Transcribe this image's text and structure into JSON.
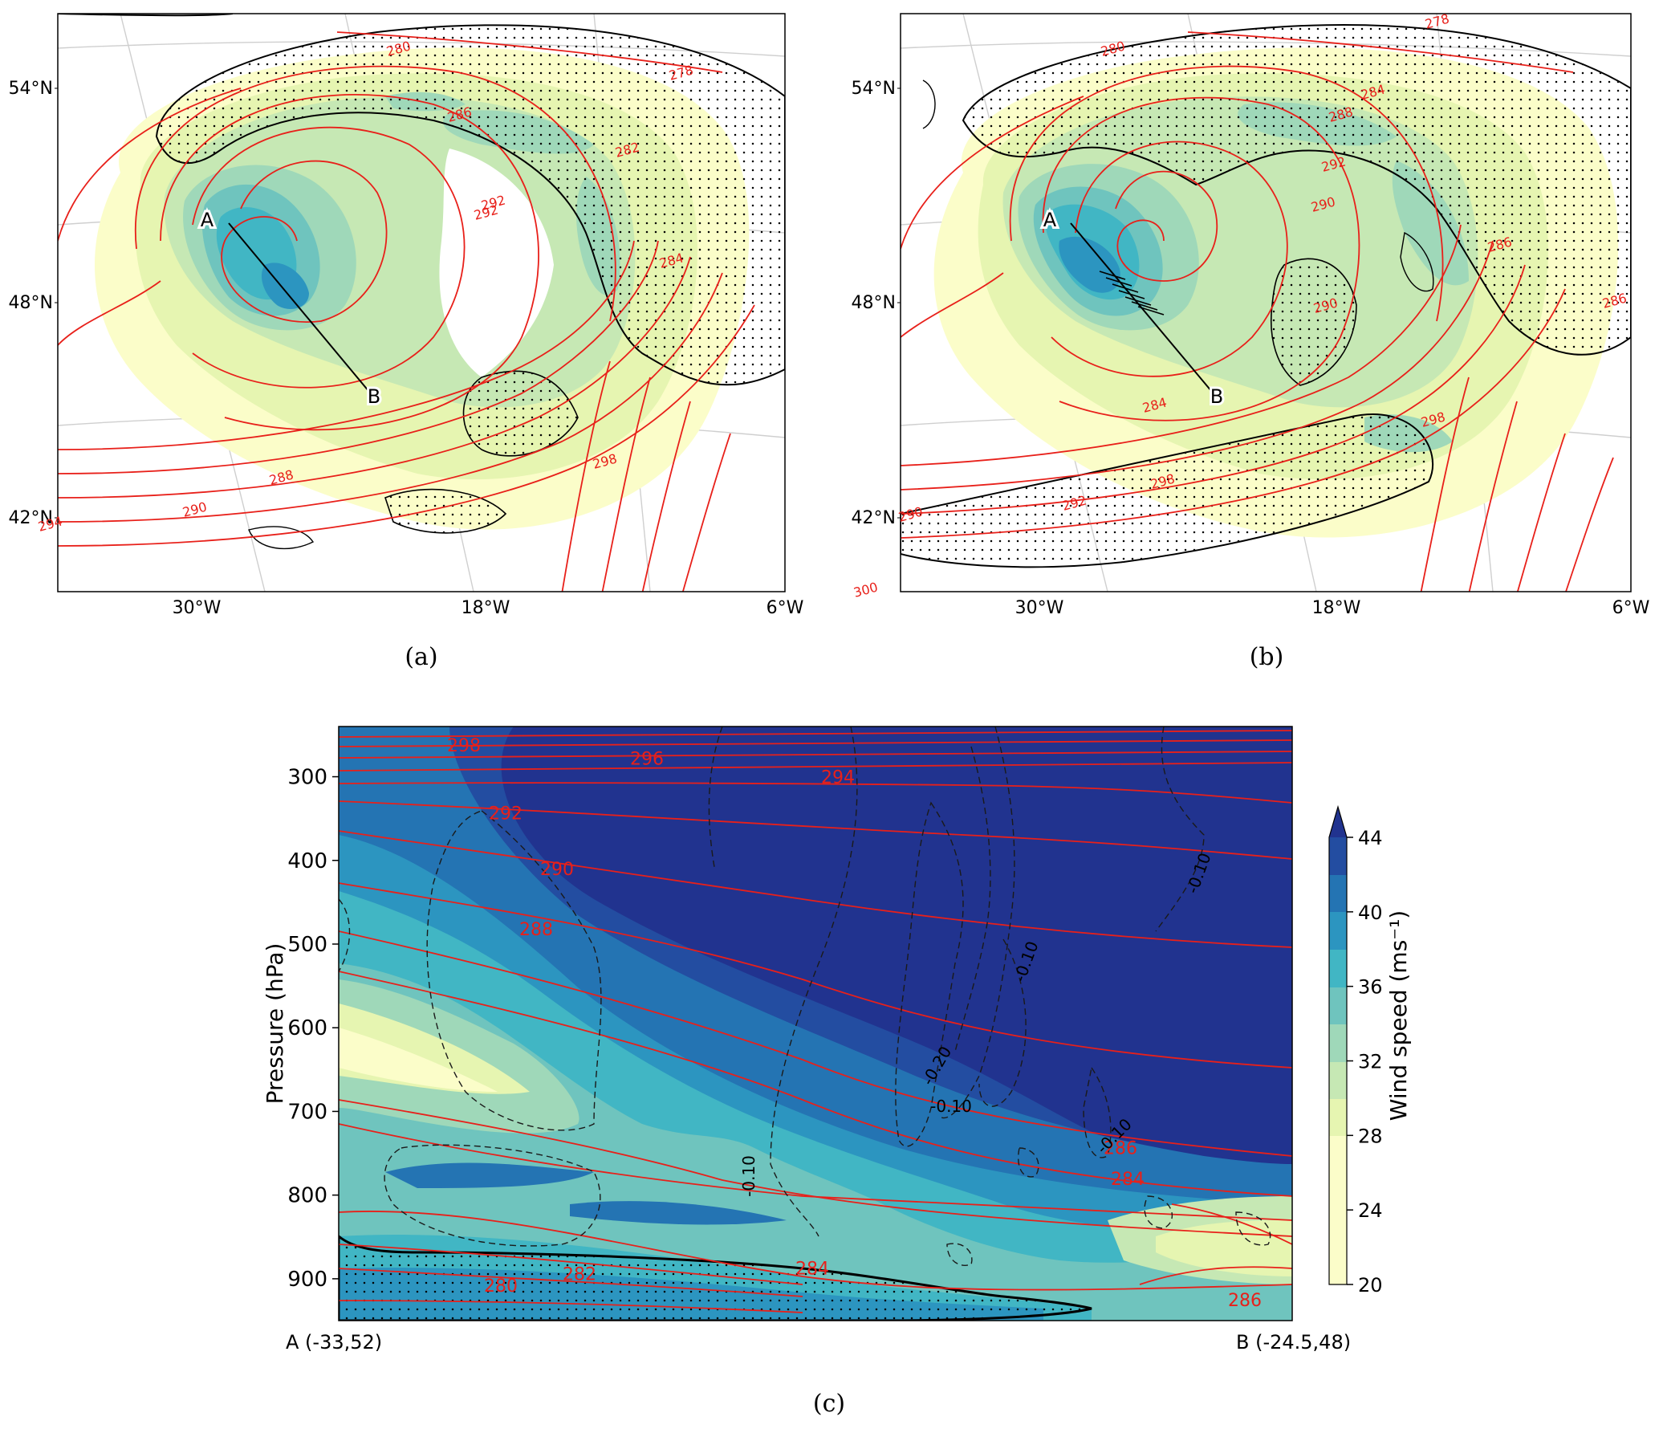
{
  "figure": {
    "panel_a_caption": "(a)",
    "panel_b_caption": "(b)",
    "panel_c_caption": "(c)"
  },
  "chart_data": [
    {
      "panel": "a",
      "type": "contour",
      "map_lat_ticks": [
        "54°N",
        "48°N",
        "42°N"
      ],
      "map_lon_ticks": [
        "30°W",
        "18°W",
        "6°W"
      ],
      "section_points": [
        "A",
        "B"
      ],
      "isentrope_labels": [
        "280",
        "278",
        "286",
        "282",
        "292",
        "284",
        "292",
        "288",
        "290",
        "294",
        "298"
      ]
    },
    {
      "panel": "b",
      "type": "contour",
      "map_lat_ticks": [
        "54°N",
        "48°N",
        "42°N"
      ],
      "map_lon_ticks": [
        "30°W",
        "18°W",
        "6°W"
      ],
      "section_points": [
        "A",
        "B"
      ],
      "isentrope_labels": [
        "280",
        "278",
        "284",
        "288",
        "292",
        "290",
        "290",
        "286",
        "286",
        "284",
        "298",
        "298",
        "292",
        "290",
        "300"
      ]
    },
    {
      "panel": "c",
      "type": "contour",
      "ylabel": "Pressure (hPa)",
      "ylim": [
        950,
        240
      ],
      "y_ticks": [
        300,
        400,
        500,
        600,
        700,
        800,
        900
      ],
      "x_ticks": [
        "A (-33,52)",
        "B (-24.5,48)"
      ],
      "colorbar": {
        "label": "Wind speed (ms⁻¹)",
        "ticks": [
          20,
          24,
          28,
          32,
          36,
          40,
          44
        ],
        "colors": [
          "#fbfdc9",
          "#e6f5b1",
          "#c6e8b4",
          "#9fd8b9",
          "#6fc4be",
          "#41b6c4",
          "#2c95c0",
          "#2474b3",
          "#234da1",
          "#21338f"
        ]
      },
      "theta_labels": [
        {
          "text": "298",
          "p": 262
        },
        {
          "text": "296",
          "p": 278
        },
        {
          "text": "294",
          "p": 300
        },
        {
          "text": "292",
          "p": 343
        },
        {
          "text": "290",
          "p": 410
        },
        {
          "text": "288",
          "p": 482
        },
        {
          "text": "286",
          "p": 743
        },
        {
          "text": "284",
          "p": 780
        },
        {
          "text": "284",
          "p": 887
        },
        {
          "text": "282",
          "p": 894
        },
        {
          "text": "280",
          "p": 908
        },
        {
          "text": "286",
          "p": 925
        }
      ],
      "omega_labels": [
        "-0.10",
        "-0.10",
        "-0.20",
        "-0.10",
        "-0.10",
        "-0.10"
      ]
    }
  ]
}
